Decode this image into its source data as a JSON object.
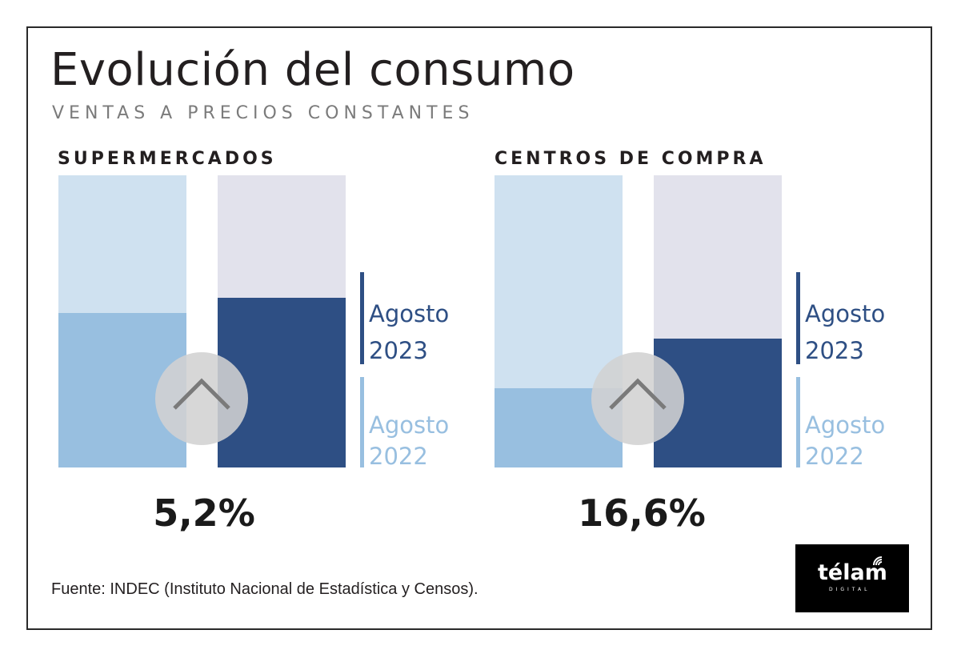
{
  "title": "Evolución del consumo",
  "subtitle": "VENTAS A PRECIOS CONSTANTES",
  "source": "Fuente: INDEC (Instituto Nacional de Estadística y Censos).",
  "logo": {
    "word": "télam",
    "sub": "DIGITAL"
  },
  "colors": {
    "agosto_2023": "#2e4f84",
    "agosto_2022": "#98bfe0",
    "background_2023": "#e2e2ec",
    "background_2022": "#cfe1f0"
  },
  "legend": {
    "item_2023": {
      "label": "Agosto",
      "year": "2023"
    },
    "item_2022": {
      "label": "Agosto",
      "year": "2022"
    }
  },
  "chart_data": [
    {
      "type": "bar",
      "title": "SUPERMERCADOS",
      "categories": [
        "Agosto 2022",
        "Agosto 2023"
      ],
      "fill_fraction": [
        0.53,
        0.58
      ],
      "variation_label": "5,2%",
      "variation_icon": "chevron-up-icon"
    },
    {
      "type": "bar",
      "title": "CENTROS DE COMPRA",
      "categories": [
        "Agosto 2022",
        "Agosto 2023"
      ],
      "fill_fraction": [
        0.27,
        0.44
      ],
      "variation_label": "16,6%",
      "variation_icon": "chevron-up-icon"
    }
  ]
}
